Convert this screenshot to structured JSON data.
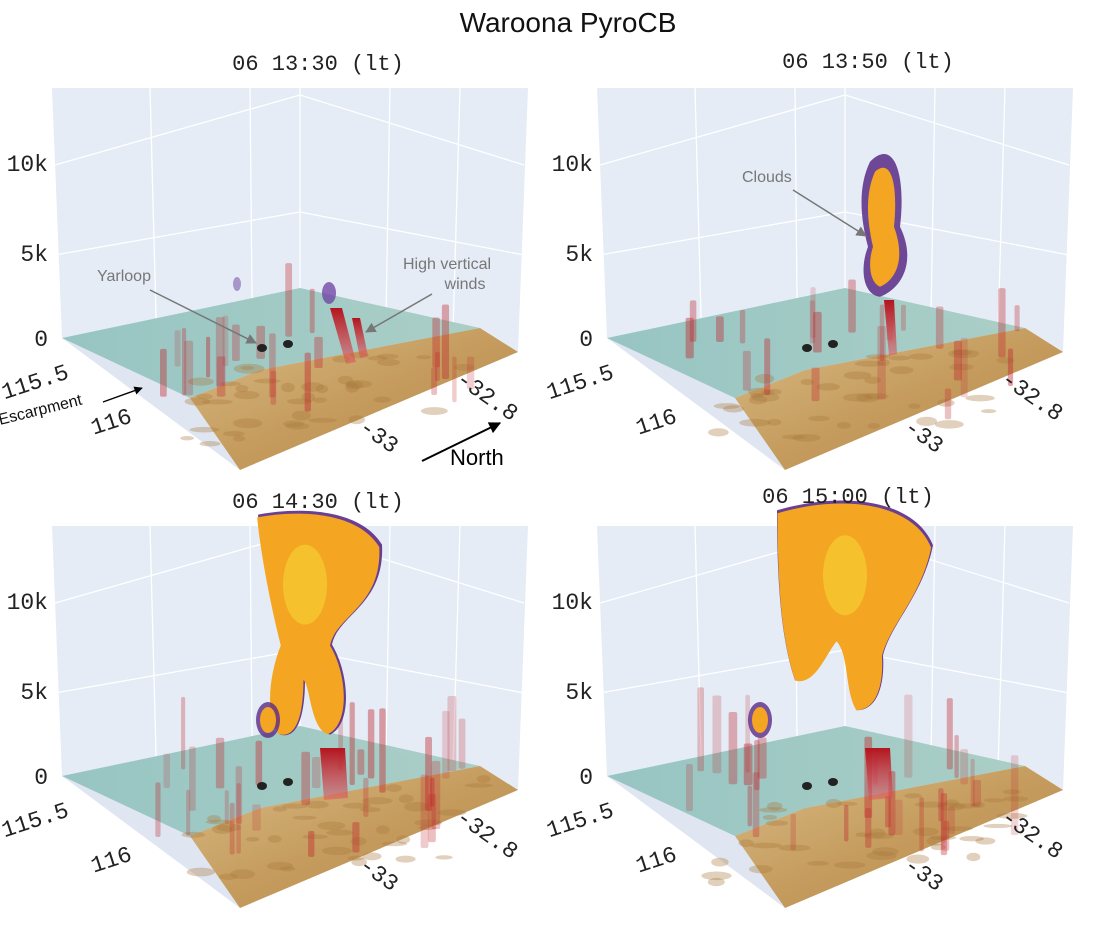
{
  "figure_title": "Waroona PyroCB",
  "chart_data": [
    {
      "type": "3d-volume",
      "title": "06 13:30 (lt)",
      "z_ticks": [
        "0",
        "5k",
        "10k"
      ],
      "x_ticks": [
        "115.5",
        "116"
      ],
      "y_ticks": [
        "-32.8",
        "-33"
      ],
      "zlim": [
        0,
        14000
      ],
      "annotations": [
        {
          "text": "Yarloop"
        },
        {
          "text": "High vertical winds"
        },
        {
          "text": "Escarpment"
        },
        {
          "text": "North"
        }
      ],
      "cloud_top": 2500
    },
    {
      "type": "3d-volume",
      "title": "06 13:50 (lt)",
      "z_ticks": [
        "0",
        "5k",
        "10k"
      ],
      "x_ticks": [
        "115.5",
        "116"
      ],
      "y_ticks": [
        "-32.8",
        "-33"
      ],
      "zlim": [
        0,
        14000
      ],
      "annotations": [
        {
          "text": "Clouds"
        }
      ],
      "cloud_top": 7500
    },
    {
      "type": "3d-volume",
      "title": "06 14:30 (lt)",
      "z_ticks": [
        "0",
        "5k",
        "10k"
      ],
      "x_ticks": [
        "115.5",
        "116"
      ],
      "y_ticks": [
        "-32.8",
        "-33"
      ],
      "zlim": [
        0,
        14000
      ],
      "annotations": [],
      "cloud_top": 13000
    },
    {
      "type": "3d-volume",
      "title": "06 15:00 (lt)",
      "z_ticks": [
        "0",
        "5k",
        "10k"
      ],
      "x_ticks": [
        "115.5",
        "116"
      ],
      "y_ticks": [
        "-32.8",
        "-33"
      ],
      "zlim": [
        0,
        14000
      ],
      "annotations": [],
      "cloud_top": 13500
    }
  ],
  "colors": {
    "scene_bg": "#e5ecf6",
    "terrain": "#c8a66e",
    "ocean": "#8fc1bf",
    "wind": "#c1272d",
    "cloud_fill": "#f4a521",
    "cloud_edge": "#5b2a86",
    "cloud_core": "#f6e63c"
  }
}
